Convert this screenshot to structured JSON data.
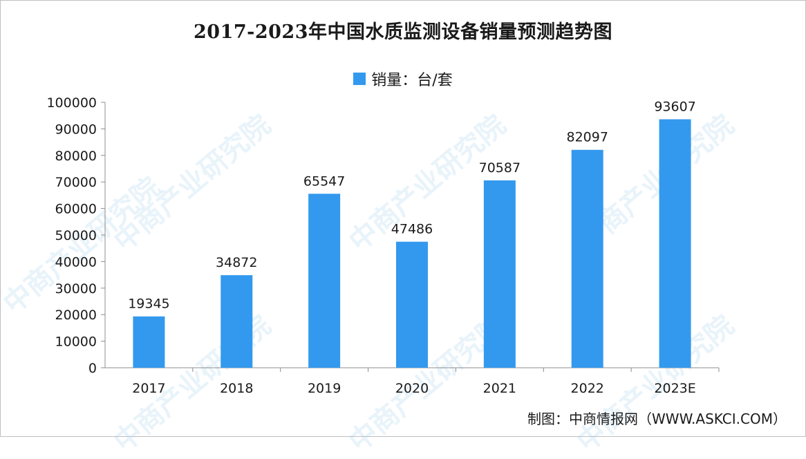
{
  "chart_data": {
    "type": "bar",
    "title": "2017-2023年中国水质监测设备销量预测趋势图",
    "categories": [
      "2017",
      "2018",
      "2019",
      "2020",
      "2021",
      "2022",
      "2023E"
    ],
    "series": [
      {
        "name": "销量：台/套",
        "values": [
          19345,
          34872,
          65547,
          47486,
          70587,
          82097,
          93607
        ]
      }
    ],
    "ylim": [
      0,
      100000
    ],
    "yticks": [
      "0",
      "10000",
      "20000",
      "30000",
      "40000",
      "50000",
      "60000",
      "70000",
      "80000",
      "90000",
      "100000"
    ],
    "legend_position": "top-center",
    "grid": false,
    "bar_color": "#3399ee"
  },
  "credit": "制图：中商情报网（WWW.ASKCI.COM）",
  "watermark_text": "中商产业研究院"
}
